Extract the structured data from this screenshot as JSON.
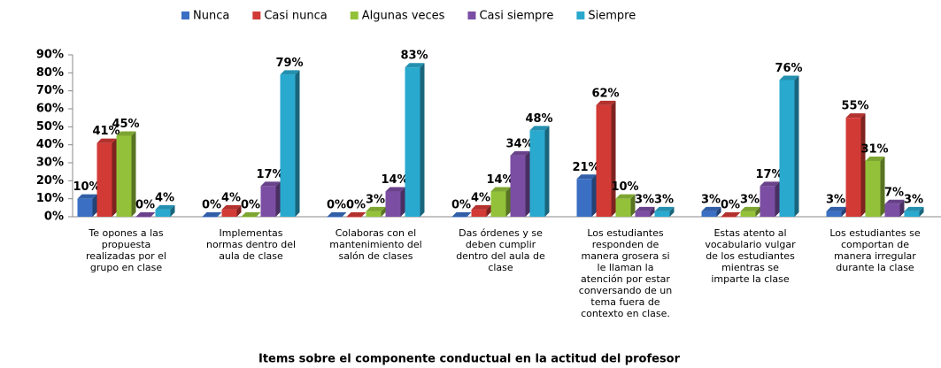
{
  "chart_data": {
    "type": "bar",
    "x_label": "Items sobre el componente conductual  en la actitud del profesor",
    "categories": [
      "Te  opones a las propuesta realizadas por el grupo en clase",
      "Implementas normas dentro del aula de clase",
      "Colaboras con el mantenimiento del salón de clases",
      "Das órdenes y se deben cumplir dentro del aula de clase",
      "Los estudiantes responden de manera grosera si le llaman la atención por estar conversando de un tema fuera de contexto en clase.",
      "Estas atento al vocabulario vulgar de los estudiantes mientras se imparte la clase",
      "Los estudiantes se comportan de manera irregular durante la clase"
    ],
    "series": [
      {
        "name": "Nunca",
        "color": "#3a6fc4",
        "values": [
          10,
          0,
          0,
          0,
          21,
          3,
          3
        ],
        "value_labels": [
          "10%",
          "0%",
          "0%",
          "0%",
          "21%",
          "3%",
          "3%"
        ]
      },
      {
        "name": "Casi nunca",
        "color": "#d23a36",
        "values": [
          41,
          4,
          0,
          4,
          62,
          0,
          55
        ],
        "value_labels": [
          "41%",
          "4%",
          "0%",
          "4%",
          "62%",
          "0%",
          "55%"
        ]
      },
      {
        "name": "Algunas veces",
        "color": "#93c23a",
        "values": [
          45,
          0,
          3,
          14,
          10,
          3,
          31
        ],
        "value_labels": [
          "45%",
          "0%",
          "3%",
          "14%",
          "10%",
          "3%",
          "31%"
        ]
      },
      {
        "name": "Casi siempre",
        "color": "#7b4ea3",
        "values": [
          0,
          17,
          14,
          34,
          3,
          17,
          7
        ],
        "value_labels": [
          "0%",
          "17%",
          "14%",
          "34%",
          "3%",
          "17%",
          "7%"
        ]
      },
      {
        "name": "Siempre",
        "color": "#2aa9cf",
        "values": [
          4,
          79,
          83,
          48,
          3,
          76,
          3
        ],
        "value_labels": [
          "4%",
          "79%",
          "83%",
          "48%",
          "3%",
          "76%",
          "3%"
        ]
      }
    ],
    "ylim": [
      0,
      90
    ],
    "yticks": [
      {
        "value": 0,
        "label": "0%"
      },
      {
        "value": 10,
        "label": "10%"
      },
      {
        "value": 20,
        "label": "20%"
      },
      {
        "value": 30,
        "label": "30%"
      },
      {
        "value": 40,
        "label": "40%"
      },
      {
        "value": 50,
        "label": "50%"
      },
      {
        "value": 60,
        "label": "60%"
      },
      {
        "value": 70,
        "label": "70%"
      },
      {
        "value": 80,
        "label": "80%"
      },
      {
        "value": 90,
        "label": "90%"
      }
    ],
    "grid": false,
    "legend": "top"
  }
}
